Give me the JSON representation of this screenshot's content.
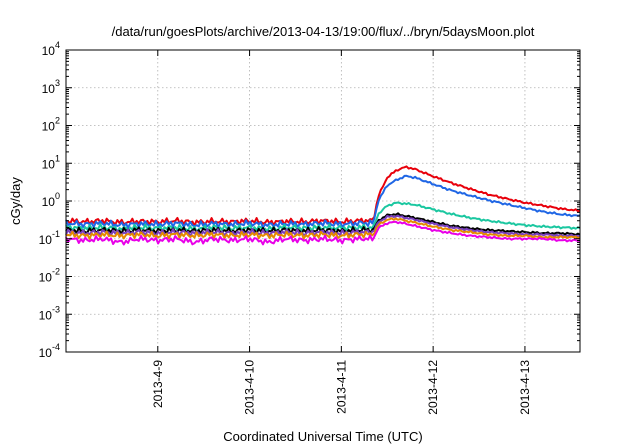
{
  "chart_data": {
    "type": "line",
    "title": "/data/run/goesPlots/archive/2013-04-13/19:00/flux/../bryn/5daysMoon.plot",
    "xlabel": "Coordinated Universal Time (UTC)",
    "ylabel": "cGy/day",
    "yscale": "log",
    "ylim": [
      0.0001,
      10000
    ],
    "xlim": [
      0,
      5.6
    ],
    "grid": true,
    "x_tick_labels": [
      {
        "x": 1,
        "label": "2013-4-9"
      },
      {
        "x": 2,
        "label": "2013-4-10"
      },
      {
        "x": 3,
        "label": "2013-4-11"
      },
      {
        "x": 4,
        "label": "2013-4-12"
      },
      {
        "x": 5,
        "label": "2013-4-13"
      }
    ],
    "y_tick_labels": [
      {
        "y": 0.0001,
        "base": "10",
        "exp": "-4"
      },
      {
        "y": 0.001,
        "base": "10",
        "exp": "-3"
      },
      {
        "y": 0.01,
        "base": "10",
        "exp": "-2"
      },
      {
        "y": 0.1,
        "base": "10",
        "exp": "-1"
      },
      {
        "y": 1,
        "base": "10",
        "exp": "0"
      },
      {
        "y": 10,
        "base": "10",
        "exp": "1"
      },
      {
        "y": 100,
        "base": "10",
        "exp": "2"
      },
      {
        "y": 1000,
        "base": "10",
        "exp": "3"
      },
      {
        "y": 10000,
        "base": "10",
        "exp": "4"
      }
    ],
    "x": [
      0,
      0.2,
      0.4,
      0.6,
      0.8,
      1.0,
      1.2,
      1.4,
      1.6,
      1.8,
      2.0,
      2.2,
      2.4,
      2.6,
      2.8,
      3.0,
      3.2,
      3.3,
      3.35,
      3.4,
      3.5,
      3.6,
      3.7,
      3.8,
      4.0,
      4.2,
      4.4,
      4.6,
      4.8,
      5.0,
      5.2,
      5.4,
      5.6
    ],
    "series": [
      {
        "color": "#e8000b",
        "values": [
          0.3,
          0.28,
          0.3,
          0.27,
          0.29,
          0.28,
          0.3,
          0.27,
          0.29,
          0.28,
          0.3,
          0.27,
          0.29,
          0.28,
          0.3,
          0.28,
          0.3,
          0.3,
          0.3,
          1.3,
          4.2,
          6.5,
          8.0,
          7.0,
          4.5,
          3.0,
          2.1,
          1.5,
          1.15,
          0.9,
          0.75,
          0.62,
          0.55
        ]
      },
      {
        "color": "#1f66e5",
        "values": [
          0.26,
          0.24,
          0.26,
          0.23,
          0.25,
          0.24,
          0.26,
          0.23,
          0.25,
          0.24,
          0.26,
          0.23,
          0.25,
          0.24,
          0.26,
          0.24,
          0.26,
          0.26,
          0.26,
          1.0,
          2.6,
          3.6,
          4.6,
          4.2,
          2.8,
          1.9,
          1.4,
          1.05,
          0.82,
          0.65,
          0.52,
          0.44,
          0.4
        ]
      },
      {
        "color": "#1ac7a0",
        "values": [
          0.2,
          0.19,
          0.2,
          0.18,
          0.2,
          0.19,
          0.2,
          0.18,
          0.2,
          0.19,
          0.2,
          0.18,
          0.2,
          0.19,
          0.2,
          0.19,
          0.2,
          0.2,
          0.2,
          0.45,
          0.75,
          0.9,
          0.85,
          0.8,
          0.6,
          0.45,
          0.36,
          0.3,
          0.26,
          0.23,
          0.21,
          0.2,
          0.19
        ]
      },
      {
        "color": "#000000",
        "values": [
          0.17,
          0.16,
          0.17,
          0.16,
          0.17,
          0.16,
          0.17,
          0.16,
          0.17,
          0.16,
          0.17,
          0.16,
          0.17,
          0.16,
          0.17,
          0.16,
          0.17,
          0.17,
          0.17,
          0.3,
          0.42,
          0.45,
          0.4,
          0.36,
          0.28,
          0.22,
          0.19,
          0.17,
          0.16,
          0.15,
          0.14,
          0.14,
          0.13
        ]
      },
      {
        "color": "#7a3fbf",
        "values": [
          0.15,
          0.14,
          0.15,
          0.14,
          0.15,
          0.14,
          0.15,
          0.14,
          0.15,
          0.14,
          0.15,
          0.14,
          0.15,
          0.14,
          0.15,
          0.14,
          0.15,
          0.15,
          0.15,
          0.27,
          0.38,
          0.4,
          0.36,
          0.32,
          0.25,
          0.2,
          0.17,
          0.15,
          0.14,
          0.13,
          0.13,
          0.12,
          0.12
        ]
      },
      {
        "color": "#e58a00",
        "values": [
          0.13,
          0.12,
          0.13,
          0.12,
          0.13,
          0.12,
          0.13,
          0.12,
          0.13,
          0.12,
          0.13,
          0.12,
          0.13,
          0.12,
          0.13,
          0.12,
          0.13,
          0.13,
          0.13,
          0.23,
          0.32,
          0.34,
          0.3,
          0.27,
          0.21,
          0.17,
          0.15,
          0.13,
          0.12,
          0.12,
          0.11,
          0.11,
          0.11
        ]
      },
      {
        "color": "#e800e8",
        "values": [
          0.1,
          0.09,
          0.1,
          0.08,
          0.1,
          0.09,
          0.1,
          0.08,
          0.1,
          0.09,
          0.1,
          0.08,
          0.1,
          0.09,
          0.1,
          0.09,
          0.1,
          0.1,
          0.1,
          0.19,
          0.26,
          0.28,
          0.25,
          0.22,
          0.17,
          0.14,
          0.12,
          0.11,
          0.1,
          0.1,
          0.1,
          0.09,
          0.09
        ]
      }
    ]
  }
}
